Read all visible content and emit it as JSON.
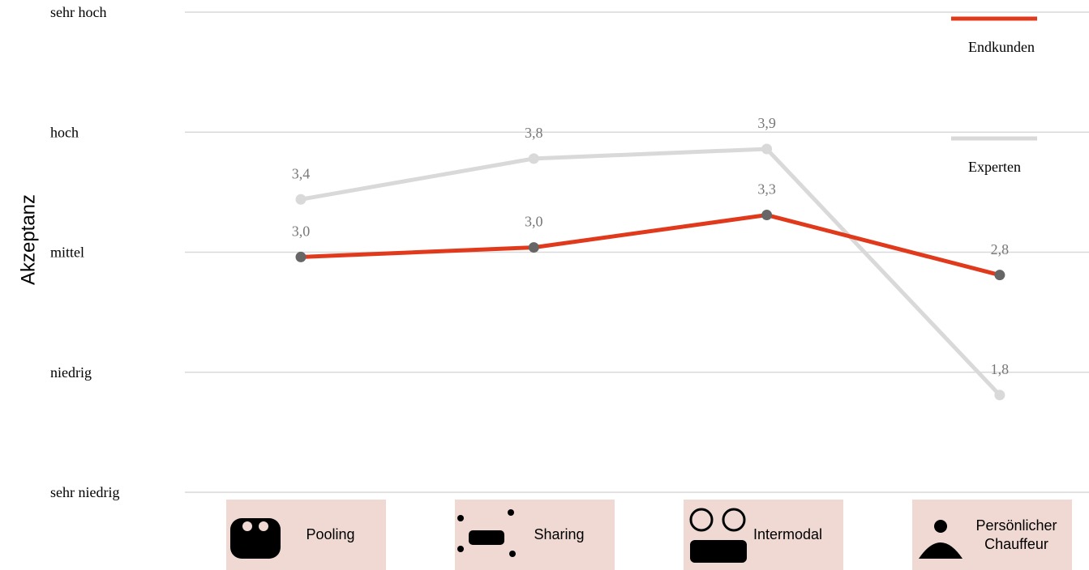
{
  "chart_data": {
    "type": "line",
    "y_label": "Akzeptanz",
    "categories": [
      "Pooling",
      "Sharing",
      "Intermodal",
      "Persönlicher Chauffeur"
    ],
    "ylim": [
      1,
      5
    ],
    "yticks": [
      {
        "value": 1,
        "label": "sehr niedrig"
      },
      {
        "value": 2,
        "label": "niedrig"
      },
      {
        "value": 3,
        "label": "mittel"
      },
      {
        "value": 4,
        "label": "hoch"
      },
      {
        "value": 5,
        "label": "sehr hoch"
      }
    ],
    "grid": true,
    "legend": "top-right",
    "series": [
      {
        "name": "Endkunden",
        "color": "#e0391c",
        "marker_color": "#666666",
        "values": [
          2.96,
          3.04,
          3.31,
          2.81
        ],
        "value_labels": [
          "3,0",
          "3,0",
          "3,3",
          "2,8"
        ]
      },
      {
        "name": "Experten",
        "color": "#d9d9d9",
        "marker_color": "#d9d9d9",
        "values": [
          3.44,
          3.78,
          3.86,
          1.81
        ],
        "value_labels": [
          "3,4",
          "3,8",
          "3,9",
          "1,8"
        ]
      }
    ]
  }
}
